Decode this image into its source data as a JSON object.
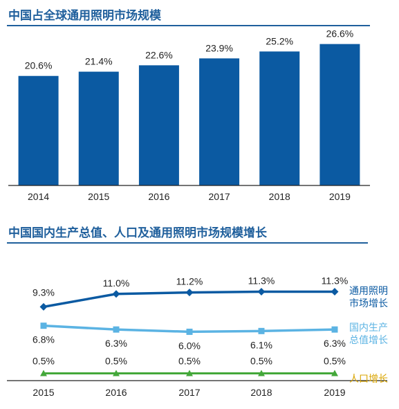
{
  "colors": {
    "title": "#1f5f9c",
    "bar": "#0b5aa2",
    "gdp": "#5bb3e3",
    "population": "#44a83a",
    "legend_population": "#d9a400",
    "axis": "#222222"
  },
  "chart_data": [
    {
      "type": "bar",
      "title": "中国占全球通用照明市场规模",
      "categories": [
        "2014",
        "2015",
        "2016",
        "2017",
        "2018",
        "2019"
      ],
      "values": [
        20.6,
        21.4,
        22.6,
        23.9,
        25.2,
        26.6
      ],
      "value_labels": [
        "20.6%",
        "21.4%",
        "22.6%",
        "23.9%",
        "25.2%",
        "26.6%"
      ],
      "ylim": [
        0,
        30
      ],
      "grid": false
    },
    {
      "type": "line",
      "title": "中国国内生产总值、人口及通用照明市场规模增长",
      "categories": [
        "2015",
        "2016",
        "2017",
        "2018",
        "2019"
      ],
      "ylim": [
        0,
        12
      ],
      "grid": false,
      "series": [
        {
          "name": "通用照明市场增长",
          "legend_lines": [
            "通用照明",
            "市场增长"
          ],
          "values": [
            9.3,
            11.0,
            11.2,
            11.3,
            11.3
          ],
          "labels": [
            "9.3%",
            "11.0%",
            "11.2%",
            "11.3%",
            "11.3%"
          ],
          "marker": "diamond"
        },
        {
          "name": "国内生产总值增长",
          "legend_lines": [
            "国内生产",
            "总值增长"
          ],
          "values": [
            6.8,
            6.3,
            6.0,
            6.1,
            6.3
          ],
          "labels": [
            "6.8%",
            "6.3%",
            "6.0%",
            "6.1%",
            "6.3%"
          ],
          "marker": "square"
        },
        {
          "name": "人口增长",
          "legend_lines": [
            "人口增长"
          ],
          "values": [
            0.5,
            0.5,
            0.5,
            0.5,
            0.5
          ],
          "labels": [
            "0.5%",
            "0.5%",
            "0.5%",
            "0.5%",
            "0.5%"
          ],
          "marker": "triangle"
        }
      ]
    }
  ]
}
